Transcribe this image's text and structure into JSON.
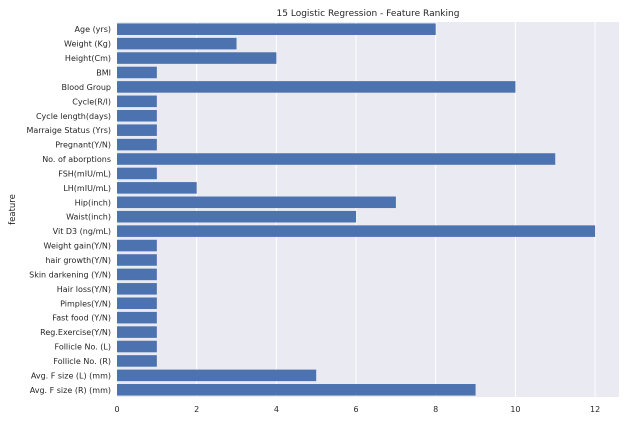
{
  "chart_data": {
    "type": "bar",
    "orientation": "horizontal",
    "title": "15 Logistic Regression - Feature Ranking",
    "xlabel": "",
    "ylabel": "feature",
    "categories": [
      "Age (yrs)",
      "Weight (Kg)",
      "Height(Cm)",
      "BMI",
      "Blood Group",
      "Cycle(R/I)",
      "Cycle length(days)",
      "Marraige Status (Yrs)",
      "Pregnant(Y/N)",
      "No. of aborptions",
      "FSH(mIU/mL)",
      "LH(mIU/mL)",
      "Hip(inch)",
      "Waist(inch)",
      "Vit D3 (ng/mL)",
      "Weight gain(Y/N)",
      "hair growth(Y/N)",
      "Skin darkening (Y/N)",
      "Hair loss(Y/N)",
      "Pimples(Y/N)",
      "Fast food (Y/N)",
      "Reg.Exercise(Y/N)",
      "Follicle No. (L)",
      "Follicle No. (R)",
      "Avg. F size (L) (mm)",
      "Avg. F size (R) (mm)"
    ],
    "values": [
      8,
      3,
      4,
      1,
      10,
      1,
      1,
      1,
      1,
      11,
      1,
      2,
      7,
      6,
      12,
      1,
      1,
      1,
      1,
      1,
      1,
      1,
      1,
      1,
      5,
      9
    ],
    "xlim": [
      0,
      12.6
    ],
    "xticks": [
      0,
      2,
      4,
      6,
      8,
      10,
      12
    ],
    "grid": true,
    "legend": "none",
    "bar_color": "#4c72b0",
    "background_color": "#eaeaf2",
    "grid_color": "#ffffff"
  }
}
